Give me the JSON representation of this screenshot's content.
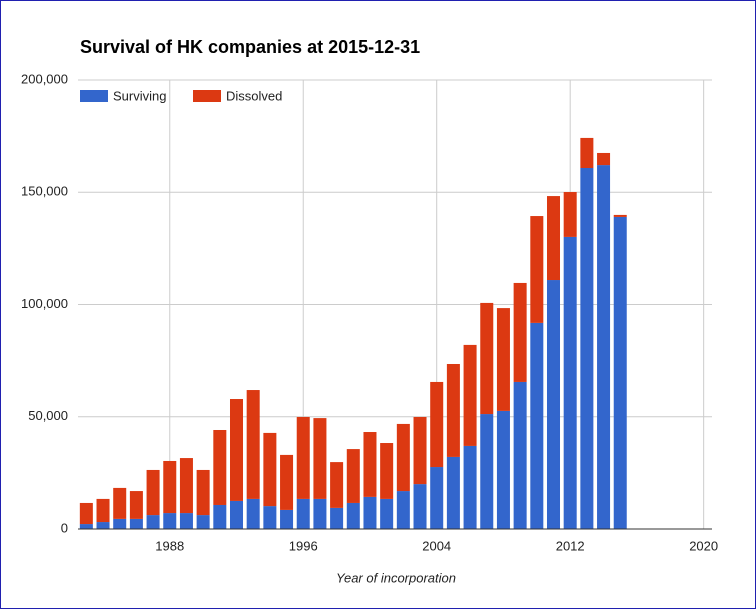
{
  "chart_data": {
    "type": "stacked_bar",
    "title": "Survival of HK companies at 2015-12-31",
    "x_label": "Year of incorporation",
    "x": [
      1983,
      1984,
      1985,
      1986,
      1987,
      1988,
      1989,
      1990,
      1991,
      1992,
      1993,
      1994,
      1995,
      1996,
      1997,
      1998,
      1999,
      2000,
      2001,
      2002,
      2003,
      2004,
      2005,
      2006,
      2007,
      2008,
      2009,
      2010,
      2011,
      2012,
      2013,
      2014,
      2015
    ],
    "series": [
      {
        "name": "Surviving",
        "color": "#3366cc",
        "values": [
          2200,
          3100,
          4500,
          4500,
          6200,
          7100,
          7100,
          6200,
          10700,
          12500,
          13400,
          10200,
          8500,
          13400,
          13400,
          9400,
          11600,
          14300,
          13400,
          16900,
          20000,
          27600,
          32100,
          37000,
          51200,
          52600,
          65500,
          91800,
          110900,
          130100,
          160800,
          162100,
          139000
        ]
      },
      {
        "name": "Dissolved",
        "color": "#dc3912",
        "values": [
          9400,
          10300,
          13800,
          12400,
          20100,
          23200,
          24500,
          20100,
          33400,
          45400,
          48500,
          32600,
          24500,
          36500,
          36000,
          20400,
          24000,
          28900,
          24900,
          29900,
          29900,
          37900,
          41400,
          45000,
          49500,
          45800,
          44100,
          47600,
          37400,
          20000,
          13400,
          5400,
          900
        ]
      }
    ],
    "xlim": [
      1982.5,
      2020.5
    ],
    "xticks": [
      1988,
      1996,
      2004,
      2012,
      2020
    ],
    "ylim": [
      0,
      200000
    ],
    "yticks": [
      0,
      {
        "value": 50000,
        "label": "50,000"
      },
      {
        "value": 100000,
        "label": "100,000"
      },
      {
        "value": 150000,
        "label": "150,000"
      },
      {
        "value": 200000,
        "label": "200,000"
      }
    ],
    "grid": true,
    "legend": "top-left"
  }
}
